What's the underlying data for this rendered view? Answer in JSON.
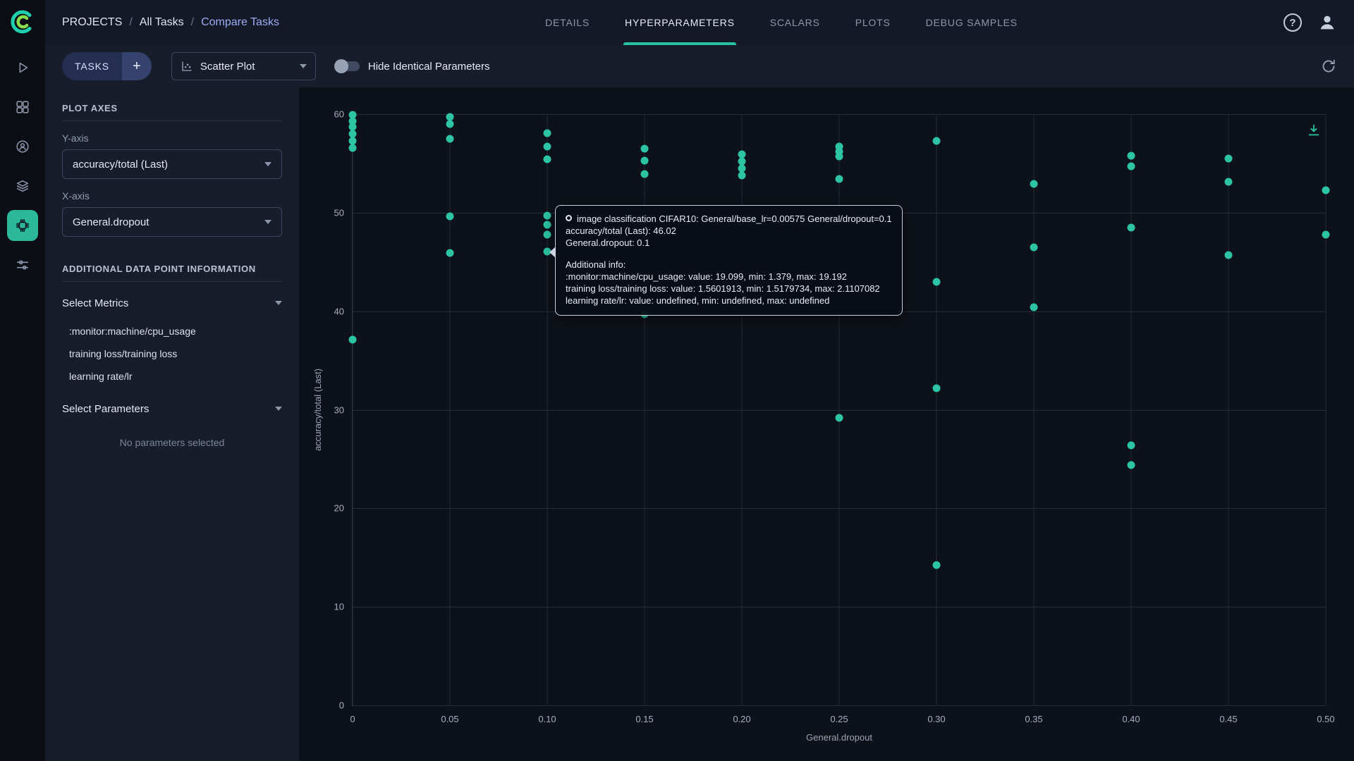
{
  "brand": {
    "accent": "#27c2a4",
    "point_color": "#2cc4a4",
    "logo_teal": "#1fd0ae",
    "logo_green": "#8adf4e"
  },
  "header": {
    "breadcrumb": [
      {
        "label": "PROJECTS"
      },
      {
        "label": "All Tasks"
      },
      {
        "label": "Compare Tasks"
      }
    ],
    "separator": "/",
    "tabs": [
      {
        "label": "DETAILS"
      },
      {
        "label": "HYPERPARAMETERS"
      },
      {
        "label": "SCALARS"
      },
      {
        "label": "PLOTS"
      },
      {
        "label": "DEBUG SAMPLES"
      }
    ],
    "help_glyph": "?"
  },
  "toolbar": {
    "tasks_label": "TASKS",
    "add_label": "+",
    "plot_type_value": "Scatter Plot",
    "hide_identical_label": "Hide Identical Parameters",
    "toggle_state": "off"
  },
  "sidebar": {
    "plot_axes_heading": "PLOT AXES",
    "y_axis_label": "Y-axis",
    "y_axis_value": "accuracy/total (Last)",
    "x_axis_label": "X-axis",
    "x_axis_value": "General.dropout",
    "additional_heading": "ADDITIONAL DATA POINT INFORMATION",
    "select_metrics_label": "Select Metrics",
    "selected_metrics": [
      ":monitor:machine/cpu_usage",
      "training loss/training loss",
      "learning rate/lr"
    ],
    "select_parameters_label": "Select Parameters",
    "no_parameters_text": "No parameters selected"
  },
  "tooltip": {
    "title": "image classification CIFAR10: General/base_lr=0.00575 General/dropout=0.1",
    "line_y": "accuracy/total (Last): 46.02",
    "line_x": "General.dropout: 0.1",
    "additional_header": "Additional info:",
    "metric_lines": [
      ":monitor:machine/cpu_usage: value: 19.099, min: 1.379, max: 19.192",
      "training loss/training loss: value: 1.5601913, min: 1.5179734, max: 2.1107082",
      "learning rate/lr: value: undefined, min: undefined, max: undefined"
    ]
  },
  "chart_data": {
    "type": "scatter",
    "xlabel": "General.dropout",
    "ylabel": "accuracy/total (Last)",
    "xlim": [
      0,
      0.5
    ],
    "ylim": [
      0,
      60
    ],
    "xticks": [
      0,
      0.05,
      0.1,
      0.15,
      0.2,
      0.25,
      0.3,
      0.35,
      0.4,
      0.45,
      0.5
    ],
    "xtick_labels": [
      "0",
      "0.05",
      "0.10",
      "0.15",
      "0.20",
      "0.25",
      "0.30",
      "0.35",
      "0.40",
      "0.45",
      "0.50"
    ],
    "yticks": [
      0,
      10,
      20,
      30,
      40,
      50,
      60
    ],
    "ytick_labels": [
      "0",
      "10",
      "20",
      "30",
      "40",
      "50",
      "60"
    ],
    "grid": true,
    "point_color": "#2cc4a4",
    "points": [
      {
        "x": 0,
        "y": 59.9
      },
      {
        "x": 0,
        "y": 59.3
      },
      {
        "x": 0,
        "y": 58.7
      },
      {
        "x": 0,
        "y": 58.0
      },
      {
        "x": 0,
        "y": 57.3
      },
      {
        "x": 0,
        "y": 56.6
      },
      {
        "x": 0,
        "y": 37.1
      },
      {
        "x": 0.05,
        "y": 59.7
      },
      {
        "x": 0.05,
        "y": 59.0
      },
      {
        "x": 0.05,
        "y": 57.5
      },
      {
        "x": 0.05,
        "y": 49.6
      },
      {
        "x": 0.05,
        "y": 45.9
      },
      {
        "x": 0.1,
        "y": 58.1
      },
      {
        "x": 0.1,
        "y": 56.7
      },
      {
        "x": 0.1,
        "y": 55.4
      },
      {
        "x": 0.1,
        "y": 49.7
      },
      {
        "x": 0.1,
        "y": 48.8
      },
      {
        "x": 0.1,
        "y": 47.8
      },
      {
        "x": 0.1,
        "y": 46.02
      },
      {
        "x": 0.15,
        "y": 56.5
      },
      {
        "x": 0.15,
        "y": 55.3
      },
      {
        "x": 0.15,
        "y": 53.9
      },
      {
        "x": 0.15,
        "y": 39.7
      },
      {
        "x": 0.2,
        "y": 55.9
      },
      {
        "x": 0.2,
        "y": 55.2
      },
      {
        "x": 0.2,
        "y": 54.5
      },
      {
        "x": 0.2,
        "y": 53.8
      },
      {
        "x": 0.25,
        "y": 56.7
      },
      {
        "x": 0.25,
        "y": 56.2
      },
      {
        "x": 0.25,
        "y": 55.7
      },
      {
        "x": 0.25,
        "y": 53.4
      },
      {
        "x": 0.25,
        "y": 29.2
      },
      {
        "x": 0.3,
        "y": 57.3
      },
      {
        "x": 0.3,
        "y": 43.0
      },
      {
        "x": 0.3,
        "y": 32.2
      },
      {
        "x": 0.3,
        "y": 14.2
      },
      {
        "x": 0.35,
        "y": 52.9
      },
      {
        "x": 0.35,
        "y": 46.5
      },
      {
        "x": 0.35,
        "y": 40.4
      },
      {
        "x": 0.4,
        "y": 55.8
      },
      {
        "x": 0.4,
        "y": 54.7
      },
      {
        "x": 0.4,
        "y": 48.5
      },
      {
        "x": 0.4,
        "y": 26.4
      },
      {
        "x": 0.4,
        "y": 24.4
      },
      {
        "x": 0.45,
        "y": 55.5
      },
      {
        "x": 0.45,
        "y": 53.1
      },
      {
        "x": 0.45,
        "y": 45.7
      },
      {
        "x": 0.5,
        "y": 52.3
      },
      {
        "x": 0.5,
        "y": 47.8
      }
    ],
    "hover_point": {
      "x": 0.1,
      "y": 46.02
    }
  }
}
